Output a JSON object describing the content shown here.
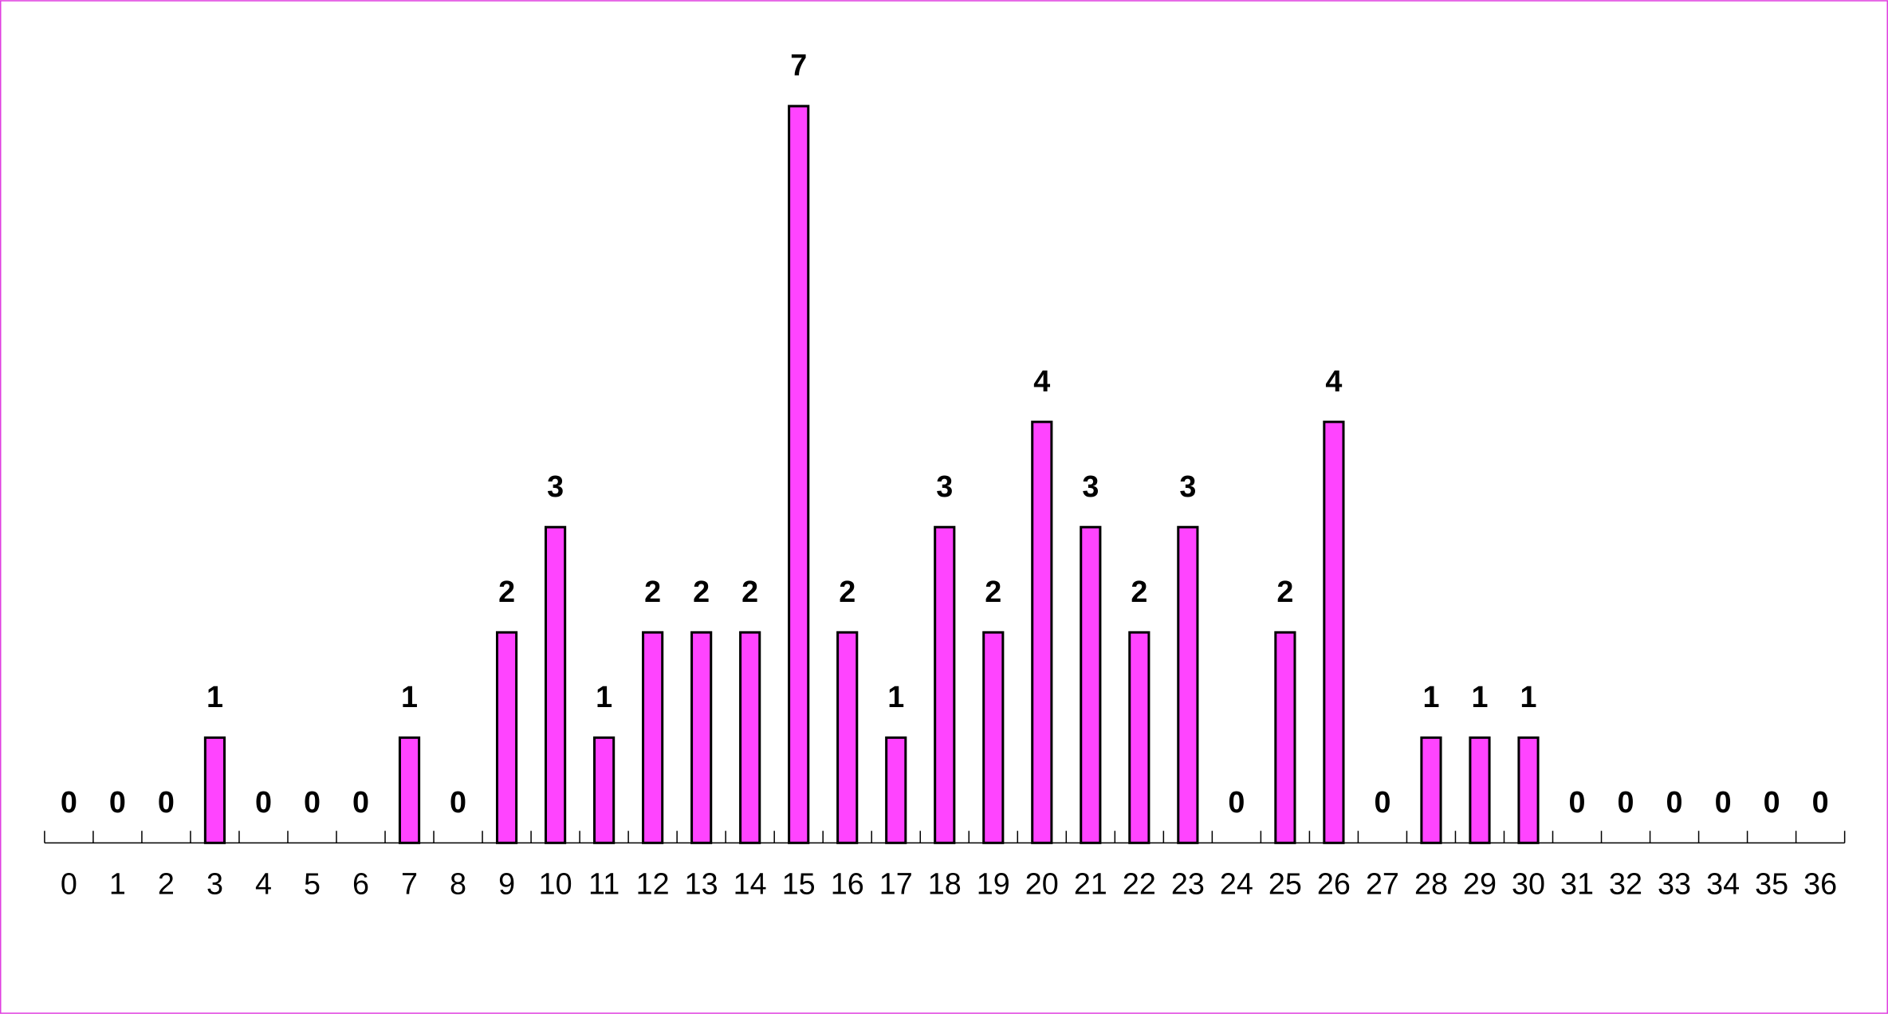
{
  "chart_data": {
    "type": "bar",
    "categories": [
      0,
      1,
      2,
      3,
      4,
      5,
      6,
      7,
      8,
      9,
      10,
      11,
      12,
      13,
      14,
      15,
      16,
      17,
      18,
      19,
      20,
      21,
      22,
      23,
      24,
      25,
      26,
      27,
      28,
      29,
      30,
      31,
      32,
      33,
      34,
      35,
      36
    ],
    "values": [
      0,
      0,
      0,
      1,
      0,
      0,
      0,
      1,
      0,
      2,
      3,
      1,
      2,
      2,
      2,
      7,
      2,
      1,
      3,
      2,
      4,
      3,
      2,
      3,
      0,
      2,
      4,
      0,
      1,
      1,
      1,
      0,
      0,
      0,
      0,
      0,
      0
    ],
    "color": "#ff44ff"
  }
}
